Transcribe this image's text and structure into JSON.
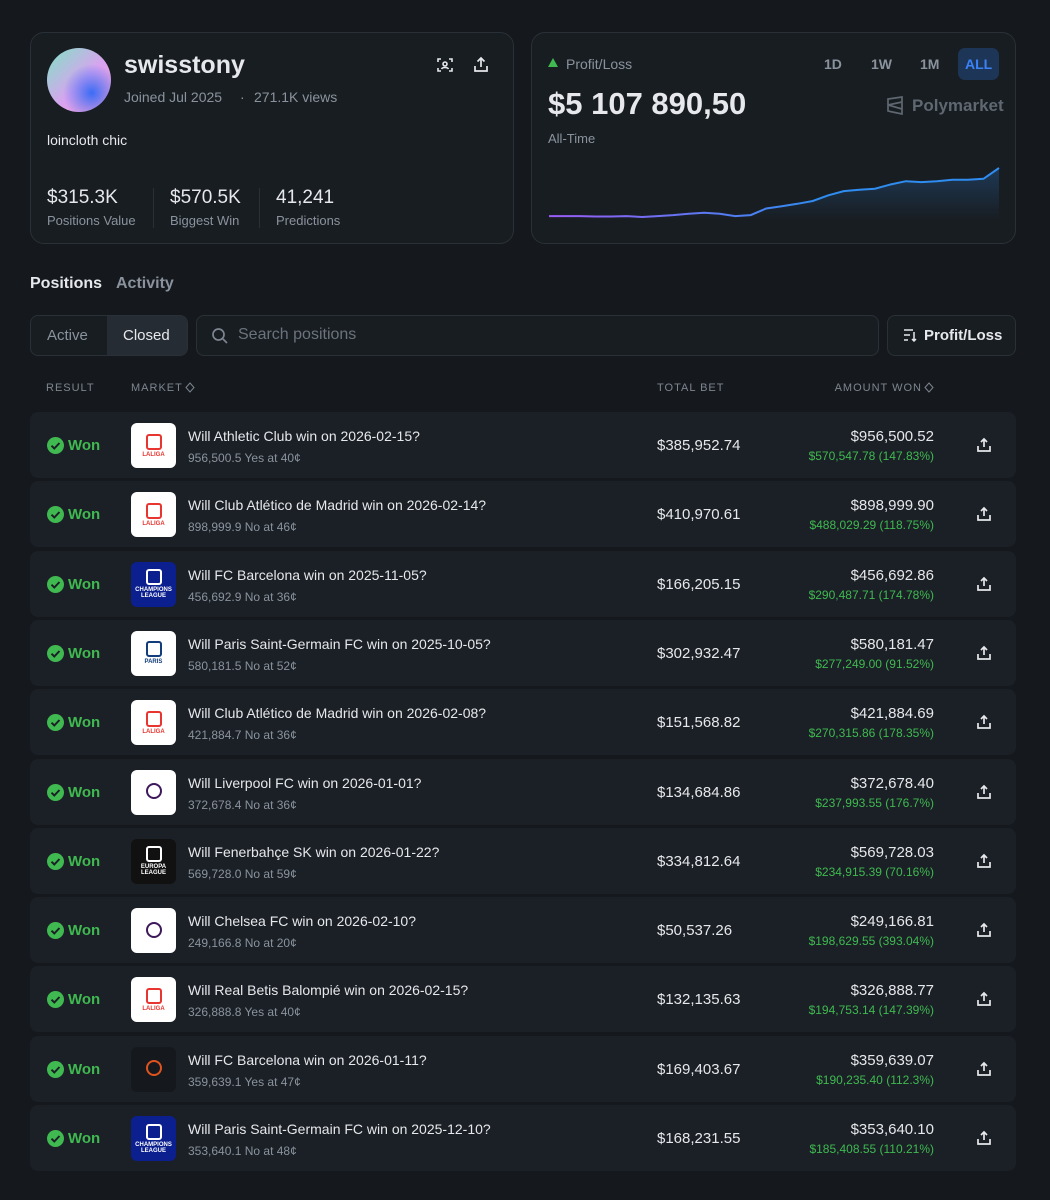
{
  "profile": {
    "username": "swisstony",
    "joined": "Joined Jul 2025",
    "separator": "·",
    "views": "271.1K views",
    "bio": "loincloth chic",
    "stats": [
      {
        "value": "$315.3K",
        "label": "Positions Value"
      },
      {
        "value": "$570.5K",
        "label": "Biggest Win"
      },
      {
        "value": "41,241",
        "label": "Predictions"
      }
    ]
  },
  "pnl": {
    "label": "Profit/Loss",
    "amount": "$5 107 890,50",
    "period": "All-Time",
    "ranges": [
      "1D",
      "1W",
      "1M",
      "ALL"
    ],
    "brand": "Polymarket"
  },
  "chart_data": {
    "type": "line",
    "colors": [
      "#9b5cf6",
      "#2f8cf0"
    ],
    "values": [
      0,
      0,
      0,
      -0.05,
      -0.05,
      0,
      -0.1,
      0,
      0.1,
      0.25,
      0.35,
      0.25,
      0,
      0.1,
      0.8,
      1.05,
      1.3,
      1.6,
      2.2,
      2.65,
      2.8,
      2.9,
      3.35,
      3.7,
      3.6,
      3.7,
      3.85,
      3.85,
      3.95,
      5.1
    ]
  },
  "tabs": [
    "Positions",
    "Activity"
  ],
  "filters": [
    "Active",
    "Closed"
  ],
  "search_placeholder": "Search positions",
  "sort": "Profit/Loss",
  "table": {
    "headers": [
      "RESULT",
      "MARKET",
      "TOTAL BET",
      "AMOUNT WON"
    ],
    "rows": [
      {
        "result": "Won",
        "logo": {
          "text": "LALIGA",
          "background": "#ffffff",
          "color": "#e8352f"
        },
        "title": "Will Athletic Club win on 2026-02-15?",
        "subtitle": "956,500.5 Yes at 40¢",
        "total_bet": "$385,952.74",
        "amount_won": "$956,500.52",
        "profit": "$570,547.78 (147.83%)"
      },
      {
        "result": "Won",
        "logo": {
          "text": "LALIGA",
          "background": "#ffffff",
          "color": "#e8352f"
        },
        "title": "Will Club Atlético de Madrid win on 2026-02-14?",
        "subtitle": "898,999.9 No at 46¢",
        "total_bet": "$410,970.61",
        "amount_won": "$898,999.90",
        "profit": "$488,029.29 (118.75%)"
      },
      {
        "result": "Won",
        "logo": {
          "text": "CHAMPIONS LEAGUE",
          "background": "#0b1f8f",
          "color": "#ffffff"
        },
        "title": "Will FC Barcelona win on 2025-11-05?",
        "subtitle": "456,692.9 No at 36¢",
        "total_bet": "$166,205.15",
        "amount_won": "$456,692.86",
        "profit": "$290,487.71 (174.78%)"
      },
      {
        "result": "Won",
        "logo": {
          "text": "PARIS",
          "background": "#ffffff",
          "color": "#123c7a"
        },
        "title": "Will Paris Saint-Germain FC win on 2025-10-05?",
        "subtitle": "580,181.5 No at 52¢",
        "total_bet": "$302,932.47",
        "amount_won": "$580,181.47",
        "profit": "$277,249.00 (91.52%)"
      },
      {
        "result": "Won",
        "logo": {
          "text": "LALIGA",
          "background": "#ffffff",
          "color": "#e8352f"
        },
        "title": "Will Club Atlético de Madrid win on 2026-02-08?",
        "subtitle": "421,884.7 No at 36¢",
        "total_bet": "$151,568.82",
        "amount_won": "$421,884.69",
        "profit": "$270,315.86 (178.35%)"
      },
      {
        "result": "Won",
        "logo": {
          "background": "#ffffff",
          "color": "#3d195b"
        },
        "title": "Will Liverpool FC win on 2026-01-01?",
        "subtitle": "372,678.4 No at 36¢",
        "total_bet": "$134,684.86",
        "amount_won": "$372,678.40",
        "profit": "$237,993.55 (176.7%)"
      },
      {
        "result": "Won",
        "logo": {
          "text": "EUROPA LEAGUE",
          "background": "#111111",
          "color": "#ffffff"
        },
        "title": "Will Fenerbahçe SK win on 2026-01-22?",
        "subtitle": "569,728.0 No at 59¢",
        "total_bet": "$334,812.64",
        "amount_won": "$569,728.03",
        "profit": "$234,915.39 (70.16%)"
      },
      {
        "result": "Won",
        "logo": {
          "background": "#ffffff",
          "color": "#3d195b"
        },
        "title": "Will Chelsea FC win on 2026-02-10?",
        "subtitle": "249,166.8 No at 20¢",
        "total_bet": "$50,537.26",
        "amount_won": "$249,166.81",
        "profit": "$198,629.55 (393.04%)"
      },
      {
        "result": "Won",
        "logo": {
          "text": "LALIGA",
          "background": "#ffffff",
          "color": "#e8352f"
        },
        "title": "Will Real Betis Balompié win on 2026-02-15?",
        "subtitle": "326,888.8 Yes at 40¢",
        "total_bet": "$132,135.63",
        "amount_won": "$326,888.77",
        "profit": "$194,753.14 (147.39%)"
      },
      {
        "result": "Won",
        "logo": {
          "background": "#15191d",
          "color": "#e0531f"
        },
        "title": "Will FC Barcelona win on 2026-01-11?",
        "subtitle": "359,639.1 Yes at 47¢",
        "total_bet": "$169,403.67",
        "amount_won": "$359,639.07",
        "profit": "$190,235.40 (112.3%)"
      },
      {
        "result": "Won",
        "logo": {
          "text": "CHAMPIONS LEAGUE",
          "background": "#0b1f8f",
          "color": "#ffffff"
        },
        "title": "Will Paris Saint-Germain FC win on 2025-12-10?",
        "subtitle": "353,640.1 No at 48¢",
        "total_bet": "$168,231.55",
        "amount_won": "$353,640.10",
        "profit": "$185,408.55 (110.21%)"
      }
    ]
  }
}
